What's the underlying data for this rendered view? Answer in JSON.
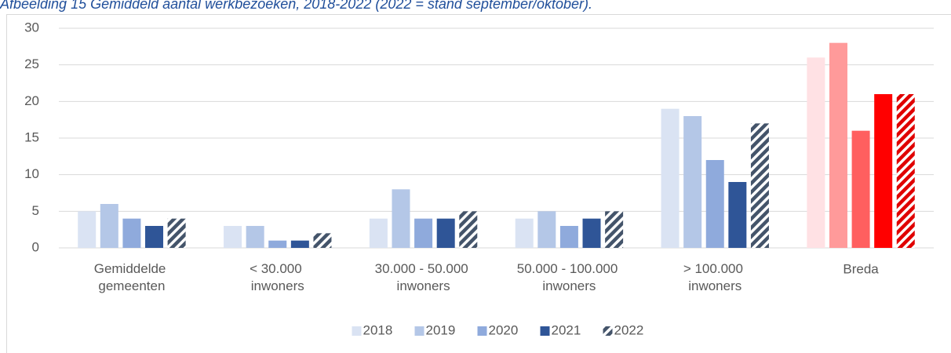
{
  "chart_data": {
    "type": "bar",
    "title": "Afbeelding 15 Gemiddeld aantal werkbezoeken, 2018-2022 (2022 = stand september/oktober).",
    "categories": [
      "Gemiddelde gemeenten",
      "< 30.000 inwoners",
      "30.000 - 50.000 inwoners",
      "50.000 - 100.000 inwoners",
      "> 100.000 inwoners",
      "Breda"
    ],
    "series": [
      {
        "name": "2018",
        "color": "#dae3f3",
        "colors": [
          "#dae3f3",
          "#dae3f3",
          "#dae3f3",
          "#dae3f3",
          "#dae3f3",
          "#ffe1e4"
        ],
        "values": [
          5,
          3,
          4,
          4,
          19,
          26
        ]
      },
      {
        "name": "2019",
        "color": "#b4c7e7",
        "colors": [
          "#b4c7e7",
          "#b4c7e7",
          "#b4c7e7",
          "#b4c7e7",
          "#b4c7e7",
          "#ff9a9a"
        ],
        "values": [
          6,
          3,
          8,
          5,
          18,
          28
        ]
      },
      {
        "name": "2020",
        "color": "#8faadc",
        "colors": [
          "#8faadc",
          "#8faadc",
          "#8faadc",
          "#8faadc",
          "#8faadc",
          "#ff5f5f"
        ],
        "values": [
          4,
          1,
          4,
          3,
          12,
          16
        ]
      },
      {
        "name": "2021",
        "color": "#2f5597",
        "colors": [
          "#2f5597",
          "#2f5597",
          "#2f5597",
          "#2f5597",
          "#2f5597",
          "#ff0000"
        ],
        "values": [
          3,
          1,
          4,
          4,
          9,
          21
        ]
      },
      {
        "name": "2022",
        "color": "#44546a",
        "colors": [
          "#44546a",
          "#44546a",
          "#44546a",
          "#44546a",
          "#44546a",
          "#e00000"
        ],
        "hatch": true,
        "values": [
          4,
          2,
          5,
          5,
          17,
          21
        ]
      }
    ],
    "ylim": [
      0,
      30
    ],
    "yticks": [
      0,
      5,
      10,
      15,
      20,
      25,
      30
    ],
    "grid": true,
    "legend": "bottom"
  }
}
